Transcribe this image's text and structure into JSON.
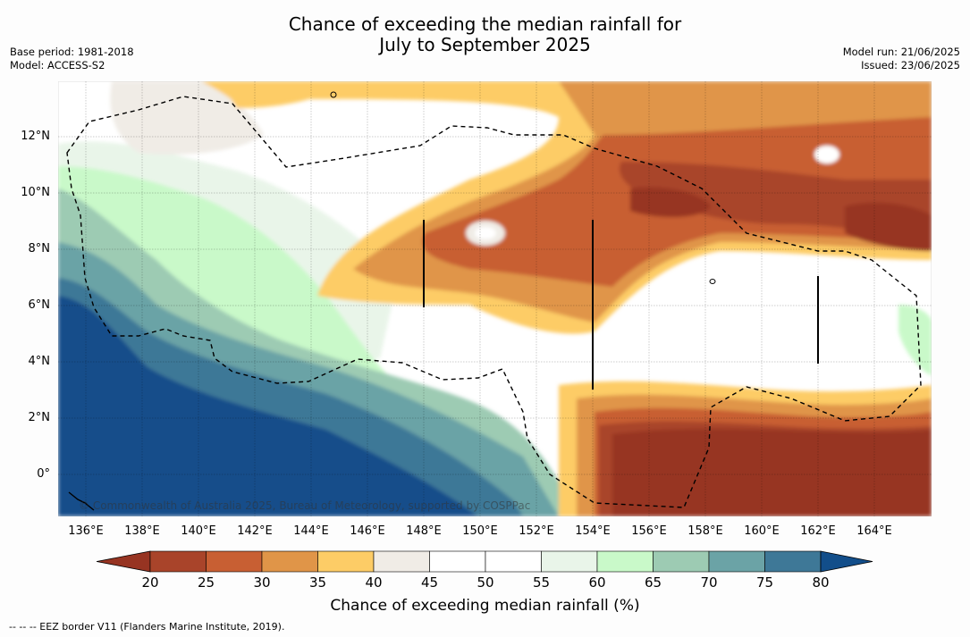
{
  "title": {
    "line1": "Chance of exceeding the median rainfall for",
    "line2": "July to September 2025"
  },
  "meta_left": {
    "base_period": "Base period: 1981-2018",
    "model": "Model: ACCESS-S2"
  },
  "meta_right": {
    "model_run": "Model run: 21/06/2025",
    "issued": "Issued: 23/06/2025"
  },
  "map": {
    "lat_labels": [
      "12°N",
      "10°N",
      "8°N",
      "6°N",
      "4°N",
      "2°N",
      "0°"
    ],
    "lon_labels": [
      "136°E",
      "138°E",
      "140°E",
      "142°E",
      "144°E",
      "146°E",
      "148°E",
      "150°E",
      "152°E",
      "154°E",
      "156°E",
      "158°E",
      "160°E",
      "162°E",
      "164°E"
    ],
    "copyright": "© Commonwealth of Australia 2025, Bureau of Meteorology, supported by COSPPac"
  },
  "colorbar": {
    "ticks": [
      "20",
      "25",
      "30",
      "35",
      "40",
      "45",
      "50",
      "55",
      "60",
      "65",
      "70",
      "75",
      "80"
    ],
    "colors": [
      "#a9442a",
      "#c85f33",
      "#e09548",
      "#fdcc66",
      "#f0ece6",
      "#ffffff",
      "#ffffff",
      "#e9f5e9",
      "#c9f9c9",
      "#9dcbb3",
      "#6ba3a6",
      "#3e7897"
    ],
    "under_color": "#973422",
    "over_color": "#124e8a",
    "label": "Chance of exceeding median rainfall (%)"
  },
  "footer": "--  --  -- EEZ border V11 (Flanders Marine Institute, 2019)."
}
